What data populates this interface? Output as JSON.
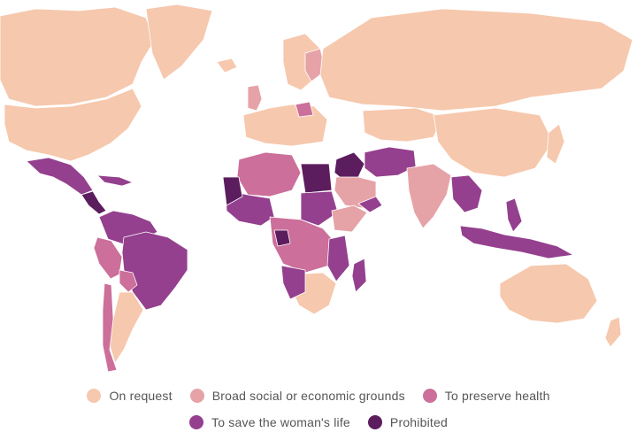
{
  "colors": {
    "on_request": "#f6c8ad",
    "broad_social": "#e6a3a7",
    "preserve_health": "#cc6f9a",
    "save_life": "#94408e",
    "prohibited": "#5b1d5d",
    "ocean": "#ffffff",
    "border": "#ffffff"
  },
  "legend": [
    {
      "key": "on_request",
      "label": "On request",
      "icon": "circle-swatch"
    },
    {
      "key": "broad_social",
      "label": "Broad social or economic grounds",
      "icon": "circle-swatch"
    },
    {
      "key": "preserve_health",
      "label": "To preserve health",
      "icon": "circle-swatch"
    },
    {
      "key": "save_life",
      "label": "To save the woman's life",
      "icon": "circle-swatch"
    },
    {
      "key": "prohibited",
      "label": "Prohibited",
      "icon": "circle-swatch"
    }
  ]
}
